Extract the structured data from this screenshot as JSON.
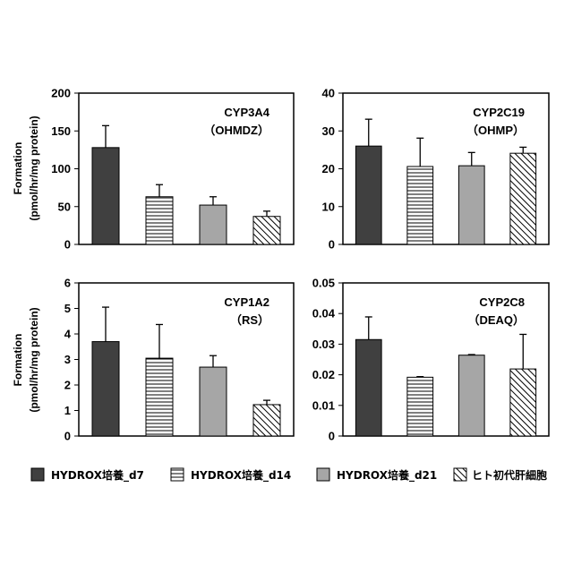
{
  "y_axis_label_line1": "Formation",
  "y_axis_label_line2": "(pmol/hr/mg protein)",
  "legend": [
    {
      "label": "HYDROX培養_d7",
      "fill": "dark"
    },
    {
      "label": "HYDROX培養_d14",
      "fill": "hstripe"
    },
    {
      "label": "HYDROX培養_d21",
      "fill": "gray"
    },
    {
      "label": "ヒト初代肝細胞",
      "fill": "diag"
    }
  ],
  "colors": {
    "dark": "#404040",
    "gray": "#a6a6a6",
    "axis": "#000000"
  },
  "chart_data": [
    {
      "type": "bar",
      "name_line1": "CYP3A4",
      "name_line2": "（OHMDZ）",
      "categories": [
        "HYDROX培養_d7",
        "HYDROX培養_d14",
        "HYDROX培養_d21",
        "ヒト初代肝細胞"
      ],
      "values": [
        128,
        63,
        52,
        37
      ],
      "errors": [
        29,
        16,
        11,
        7
      ],
      "ylim": [
        0,
        200
      ],
      "ticks": [
        "0",
        "50",
        "100",
        "150",
        "200"
      ],
      "tick_values": [
        0,
        50,
        100,
        150,
        200
      ]
    },
    {
      "type": "bar",
      "name_line1": "CYP2C19",
      "name_line2": "（OHMP）",
      "categories": [
        "HYDROX培養_d7",
        "HYDROX培養_d14",
        "HYDROX培養_d21",
        "ヒト初代肝細胞"
      ],
      "values": [
        26.0,
        20.6,
        20.8,
        24.1
      ],
      "errors": [
        7.1,
        7.5,
        3.5,
        1.6
      ],
      "ylim": [
        0,
        40
      ],
      "ticks": [
        "0",
        "10",
        "20",
        "30",
        "40"
      ],
      "tick_values": [
        0,
        10,
        20,
        30,
        40
      ]
    },
    {
      "type": "bar",
      "name_line1": "CYP1A2",
      "name_line2": "（RS）",
      "categories": [
        "HYDROX培養_d7",
        "HYDROX培養_d14",
        "HYDROX培養_d21",
        "ヒト初代肝細胞"
      ],
      "values": [
        3.7,
        3.05,
        2.7,
        1.23
      ],
      "errors": [
        1.35,
        1.32,
        0.45,
        0.17
      ],
      "ylim": [
        0,
        6
      ],
      "ticks": [
        "0",
        "1",
        "2",
        "3",
        "4",
        "5",
        "6"
      ],
      "tick_values": [
        0,
        1,
        2,
        3,
        4,
        5,
        6
      ]
    },
    {
      "type": "bar",
      "name_line1": "CYP2C8",
      "name_line2": "（DEAQ）",
      "categories": [
        "HYDROX培養_d7",
        "HYDROX培養_d14",
        "HYDROX培養_d21",
        "ヒト初代肝細胞"
      ],
      "values": [
        0.0315,
        0.0192,
        0.0264,
        0.0219
      ],
      "errors": [
        0.0074,
        0.0002,
        0.0002,
        0.0113
      ],
      "ylim": [
        0,
        0.05
      ],
      "ticks": [
        "0",
        "0.01",
        "0.02",
        "0.03",
        "0.04",
        "0.05"
      ],
      "tick_values": [
        0,
        0.01,
        0.02,
        0.03,
        0.04,
        0.05
      ]
    }
  ]
}
